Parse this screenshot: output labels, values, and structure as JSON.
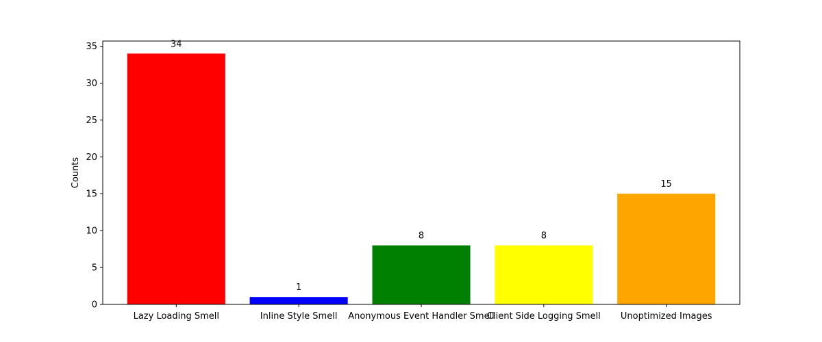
{
  "chart_data": {
    "type": "bar",
    "categories": [
      "Lazy Loading Smell",
      "Inline Style Smell",
      "Anonymous Event Handler Smell",
      "Client Side Logging Smell",
      "Unoptimized Images"
    ],
    "values": [
      34,
      1,
      8,
      8,
      15
    ],
    "colors": [
      "#ff0000",
      "#0000ff",
      "#008000",
      "#ffff00",
      "#ffa500"
    ],
    "title": "",
    "xlabel": "",
    "ylabel": "Counts",
    "ylim": [
      0,
      35.7
    ],
    "yticks": [
      0,
      5,
      10,
      15,
      20,
      25,
      30,
      35
    ],
    "grid": false,
    "data_labels": true
  }
}
